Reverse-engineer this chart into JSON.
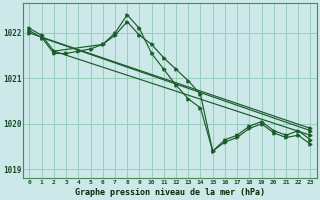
{
  "xlabel": "Graphe pression niveau de la mer (hPa)",
  "background_color": "#cce8e8",
  "plot_bg_color": "#cce8e8",
  "grid_color": "#99ccbb",
  "line_color": "#1a5c2a",
  "xlim": [
    -0.5,
    23.5
  ],
  "ylim": [
    1018.8,
    1022.65
  ],
  "yticks": [
    1019,
    1020,
    1021,
    1022
  ],
  "xticks": [
    0,
    1,
    2,
    3,
    4,
    5,
    6,
    7,
    8,
    9,
    10,
    11,
    12,
    13,
    14,
    15,
    16,
    17,
    18,
    19,
    20,
    21,
    22,
    23
  ],
  "series": [
    {
      "x": [
        0,
        1,
        2,
        6,
        7,
        8,
        9,
        10,
        11,
        12,
        13,
        14,
        15,
        16,
        17,
        18,
        19,
        20,
        21,
        22,
        23
      ],
      "y": [
        1022.1,
        1021.95,
        1021.6,
        1021.75,
        1022.0,
        1022.4,
        1022.1,
        1021.55,
        1021.2,
        1020.85,
        1020.55,
        1020.35,
        1019.4,
        1019.65,
        1019.75,
        1019.95,
        1020.05,
        1019.85,
        1019.75,
        1019.85,
        1019.65
      ]
    },
    {
      "x": [
        0,
        23
      ],
      "y": [
        1022.0,
        1019.9
      ]
    },
    {
      "x": [
        1,
        23
      ],
      "y": [
        1021.9,
        1019.85
      ]
    },
    {
      "x": [
        2,
        23
      ],
      "y": [
        1021.6,
        1019.75
      ]
    },
    {
      "x": [
        0,
        1,
        2,
        3,
        4,
        5,
        6,
        7,
        8,
        9,
        10,
        11,
        12,
        13,
        14,
        15,
        16,
        17,
        18,
        19,
        20,
        21,
        22,
        23
      ],
      "y": [
        1022.05,
        1021.9,
        1021.55,
        1021.55,
        1021.6,
        1021.65,
        1021.75,
        1021.95,
        1022.25,
        1021.95,
        1021.75,
        1021.45,
        1021.2,
        1020.95,
        1020.65,
        1019.4,
        1019.6,
        1019.7,
        1019.9,
        1020.0,
        1019.8,
        1019.7,
        1019.75,
        1019.55
      ]
    }
  ]
}
